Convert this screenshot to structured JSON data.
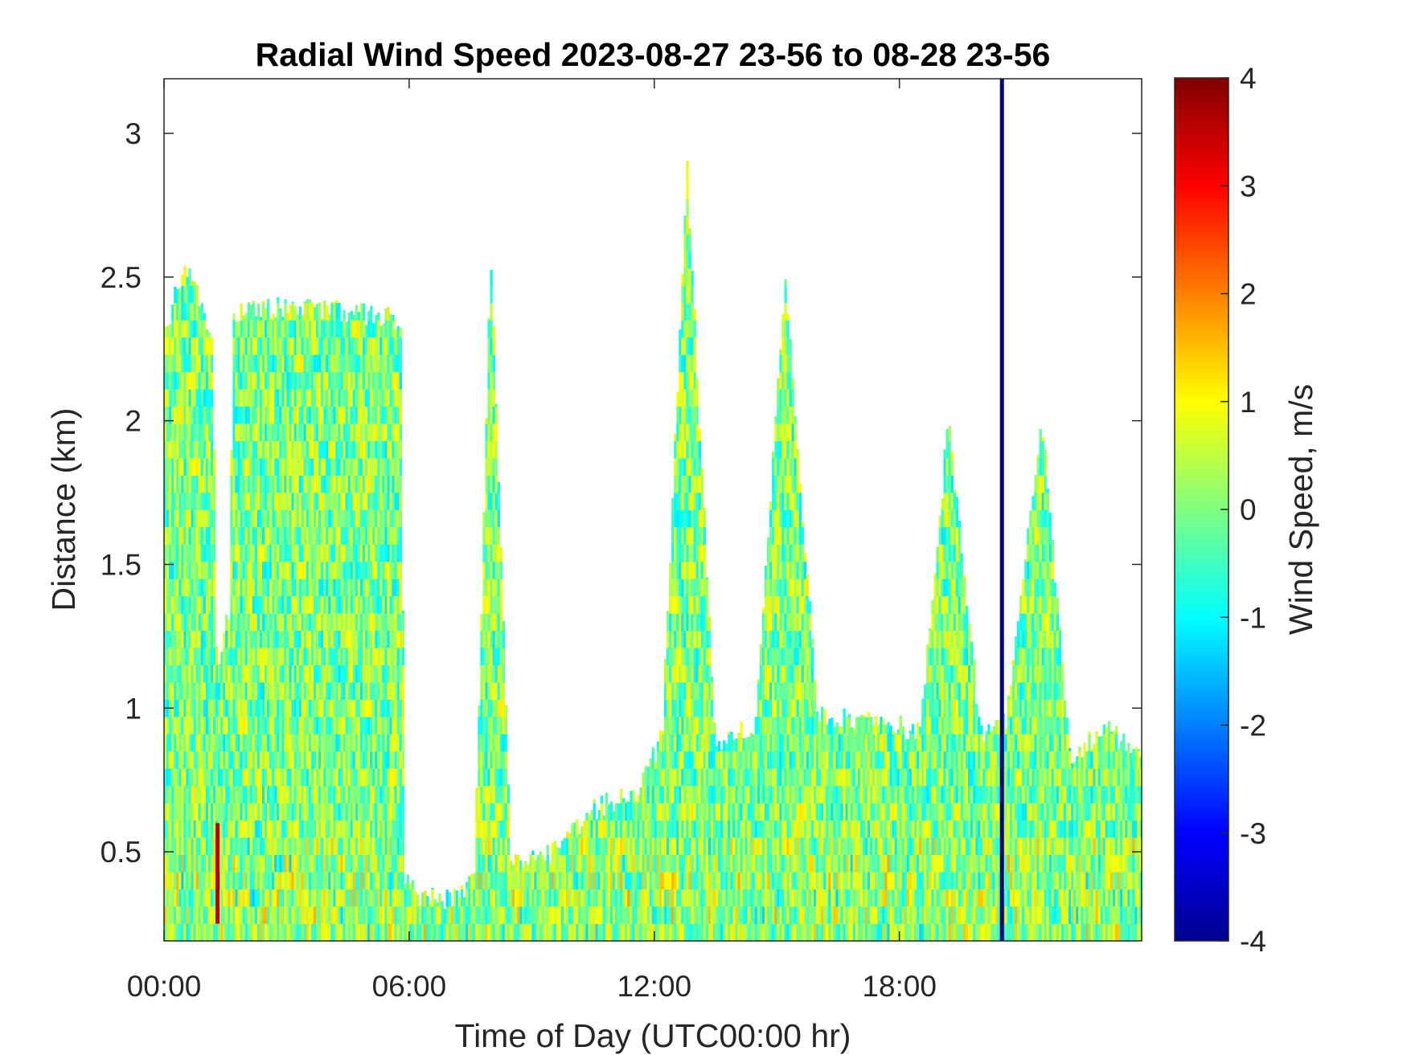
{
  "chart_data": {
    "type": "heatmap",
    "title": "Radial Wind Speed 2023-08-27 23-56 to 08-28 23-56",
    "xlabel": "Time of Day (UTC00:00 hr)",
    "ylabel": "Distance (km)",
    "colorbar_label": "Wind Speed, m/s",
    "xlim_hours": [
      0,
      23.93
    ],
    "ylim_km": [
      0.19,
      3.19
    ],
    "clim": [
      -4,
      4
    ],
    "colormap": "jet",
    "x_ticks": [
      {
        "value": 0,
        "label": "00:00"
      },
      {
        "value": 6,
        "label": "06:00"
      },
      {
        "value": 12,
        "label": "12:00"
      },
      {
        "value": 18,
        "label": "18:00"
      }
    ],
    "y_ticks": [
      {
        "value": 0.5,
        "label": "0.5"
      },
      {
        "value": 1,
        "label": "1"
      },
      {
        "value": 1.5,
        "label": "1.5"
      },
      {
        "value": 2,
        "label": "2"
      },
      {
        "value": 2.5,
        "label": "2.5"
      },
      {
        "value": 3,
        "label": "3"
      }
    ],
    "colorbar_ticks": [
      {
        "value": 4,
        "label": "4"
      },
      {
        "value": 3,
        "label": "3"
      },
      {
        "value": 2,
        "label": "2"
      },
      {
        "value": 1,
        "label": "1"
      },
      {
        "value": 0,
        "label": "0"
      },
      {
        "value": -1,
        "label": "-1"
      },
      {
        "value": -2,
        "label": "-2"
      },
      {
        "value": -3,
        "label": "-3"
      },
      {
        "value": -4,
        "label": "-4"
      }
    ],
    "data_top_profile": [
      {
        "t": 0.0,
        "top": 2.3
      },
      {
        "t": 0.5,
        "top": 2.55
      },
      {
        "t": 1.2,
        "top": 2.3
      },
      {
        "t": 1.3,
        "top": 1.1
      },
      {
        "t": 1.6,
        "top": 1.35
      },
      {
        "t": 1.7,
        "top": 2.38
      },
      {
        "t": 3.5,
        "top": 2.4
      },
      {
        "t": 5.8,
        "top": 2.35
      },
      {
        "t": 5.9,
        "top": 0.4
      },
      {
        "t": 6.4,
        "top": 0.33
      },
      {
        "t": 7.3,
        "top": 0.35
      },
      {
        "t": 7.6,
        "top": 0.45
      },
      {
        "t": 8.0,
        "top": 2.6
      },
      {
        "t": 8.5,
        "top": 0.45
      },
      {
        "t": 9.5,
        "top": 0.5
      },
      {
        "t": 10.5,
        "top": 0.65
      },
      {
        "t": 11.5,
        "top": 0.7
      },
      {
        "t": 12.2,
        "top": 0.9
      },
      {
        "t": 12.8,
        "top": 2.9
      },
      {
        "t": 13.5,
        "top": 0.88
      },
      {
        "t": 14.5,
        "top": 0.95
      },
      {
        "t": 15.2,
        "top": 2.5
      },
      {
        "t": 16.0,
        "top": 0.97
      },
      {
        "t": 17.5,
        "top": 0.95
      },
      {
        "t": 18.5,
        "top": 0.92
      },
      {
        "t": 19.2,
        "top": 2.0
      },
      {
        "t": 20.0,
        "top": 0.9
      },
      {
        "t": 20.6,
        "top": 0.95
      },
      {
        "t": 21.5,
        "top": 2.0
      },
      {
        "t": 22.2,
        "top": 0.8
      },
      {
        "t": 23.0,
        "top": 0.95
      },
      {
        "t": 23.93,
        "top": 0.82
      }
    ],
    "value_range_typical": [
      -1.2,
      1.2
    ],
    "notable_features": [
      {
        "t": 20.5,
        "value": -4,
        "from_km": 0.19,
        "to_km": 3.19,
        "description_label": ""
      },
      {
        "t": 1.3,
        "value": 3.5,
        "from_km": 0.25,
        "to_km": 0.6,
        "description_label": ""
      }
    ],
    "grid": false
  }
}
